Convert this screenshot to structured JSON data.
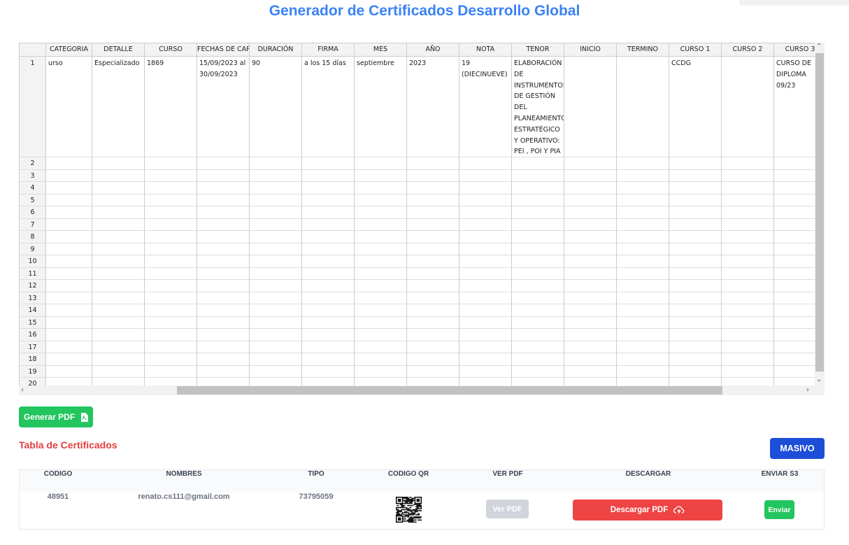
{
  "header": {
    "title": "Generador de Certificados Desarrollo Global"
  },
  "spreadsheet": {
    "columns": [
      "CATEGORIA",
      "DETALLE",
      "CURSO",
      "FECHAS DE CAPA",
      "DURACIÓN",
      "FIRMA",
      "MES",
      "AÑO",
      "NOTA",
      "TENOR",
      "INICIO",
      "TERMINO",
      "CURSO 1",
      "CURSO 2",
      "CURSO 3"
    ],
    "row_numbers": [
      1,
      2,
      3,
      4,
      5,
      6,
      7,
      8,
      9,
      10,
      11,
      12,
      13,
      14,
      15,
      16,
      17,
      18,
      19,
      20
    ],
    "rows": [
      [
        "urso",
        "Especializado",
        "1869",
        "15/09/2023 al 30/09/2023",
        "90",
        "a los 15 días",
        "septiembre",
        "2023",
        "19 (DIECINUEVE)",
        "ELABORACIÓN DE INSTRUMENTOS DE GESTIÓN DEL PLANEAMIENTO ESTRATÉGICO Y OPERATIVO: PEI , POI Y PIA",
        null,
        null,
        "CCDG",
        null,
        "CURSO DE DIPLOMA 09/23"
      ]
    ]
  },
  "actions": {
    "generate_pdf": "Generar PDF",
    "bulk": "MASIVO"
  },
  "certificates": {
    "title": "Tabla de Certificados",
    "columns": [
      "CODIGO",
      "NOMBRES",
      "TIPO",
      "CODIGO QR",
      "VER PDF",
      "DESCARGAR",
      "ENVIAR S3"
    ],
    "rows": [
      {
        "code": "48951",
        "name": "renato.cs111@gmail.com",
        "type": "73795059",
        "view": "Ver PDF",
        "download": "Descargar PDF",
        "send": "Enviar"
      }
    ]
  }
}
